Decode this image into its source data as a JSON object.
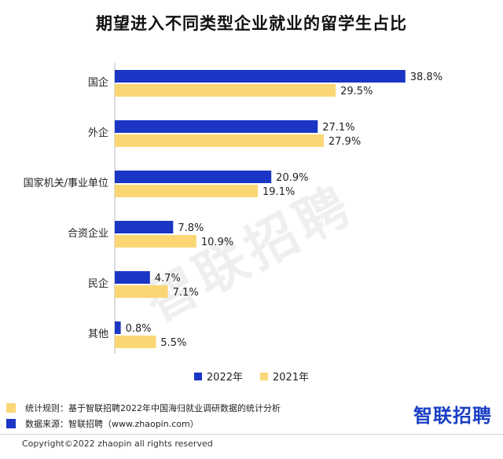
{
  "chart_data": {
    "type": "bar",
    "orientation": "horizontal",
    "title": "期望进入不同类型企业就业的留学生占比",
    "categories": [
      "国企",
      "外企",
      "国家机关/事业单位",
      "合资企业",
      "民企",
      "其他"
    ],
    "series": [
      {
        "name": "2022年",
        "color": "#1b36c4",
        "values": [
          38.8,
          27.1,
          20.9,
          7.8,
          4.7,
          0.8
        ],
        "labels": [
          "38.8%",
          "27.1%",
          "20.9%",
          "7.8%",
          "4.7%",
          "0.8%"
        ]
      },
      {
        "name": "2021年",
        "color": "#fad675",
        "values": [
          29.5,
          27.9,
          19.1,
          10.9,
          7.1,
          5.5
        ],
        "labels": [
          "29.5%",
          "27.9%",
          "19.1%",
          "10.9%",
          "7.1%",
          "5.5%"
        ]
      }
    ],
    "xlim": [
      0,
      40
    ],
    "legend_position": "bottom",
    "grid": false
  },
  "watermark": "智联招聘",
  "notes": [
    {
      "text": "统计规则：基于智联招聘2022年中国海归就业调研数据的统计分析",
      "color": "#fad675"
    },
    {
      "text": "数据来源：智联招聘（www.zhaopin.com）",
      "color": "#1b36c4"
    }
  ],
  "brand": "智联招聘",
  "copyright": "Copyright©2022 zhaopin all rights reserved"
}
